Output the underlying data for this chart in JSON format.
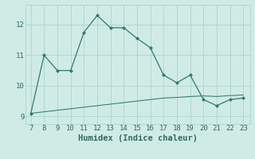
{
  "xlabel": "Humidex (Indice chaleur)",
  "x_line1": [
    7,
    8,
    9,
    10,
    11,
    12,
    13,
    14,
    15,
    16,
    17,
    18,
    19,
    20,
    21,
    22,
    23
  ],
  "y_line1": [
    9.1,
    11.0,
    10.5,
    10.5,
    11.75,
    12.3,
    11.9,
    11.9,
    11.55,
    11.25,
    10.35,
    10.1,
    10.35,
    9.55,
    9.35,
    9.55,
    9.6
  ],
  "x_line2": [
    7,
    8,
    9,
    10,
    11,
    12,
    13,
    14,
    15,
    16,
    17,
    18,
    19,
    20,
    21,
    22,
    23
  ],
  "y_line2": [
    9.1,
    9.15,
    9.2,
    9.25,
    9.3,
    9.35,
    9.4,
    9.45,
    9.5,
    9.55,
    9.6,
    9.62,
    9.65,
    9.67,
    9.65,
    9.68,
    9.7
  ],
  "line_color": "#317a6e",
  "bg_color": "#d0ebe6",
  "grid_color": "#aed4cc",
  "ylim": [
    8.75,
    12.65
  ],
  "xlim": [
    6.6,
    23.5
  ],
  "yticks": [
    9,
    10,
    11,
    12
  ],
  "xticks": [
    7,
    8,
    9,
    10,
    11,
    12,
    13,
    14,
    15,
    16,
    17,
    18,
    19,
    20,
    21,
    22,
    23
  ],
  "tick_fontsize": 6.5,
  "label_fontsize": 7.5,
  "tick_color": "#2e6b60"
}
